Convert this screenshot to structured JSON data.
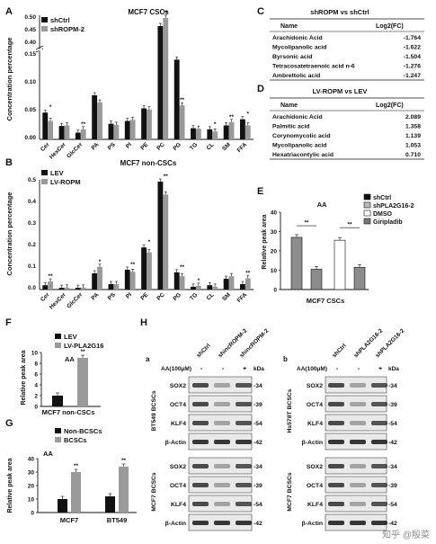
{
  "panel_letters": [
    "A",
    "B",
    "C",
    "D",
    "E",
    "F",
    "G",
    "H"
  ],
  "tick_labels_A": [
    "0.50",
    "0.45",
    "0.40",
    "0.15",
    "0.10",
    "0.05",
    "0.00"
  ],
  "tick_labels_B": [
    "0.5",
    "0.4",
    "0.3",
    "0.2",
    "0.1",
    "0.0"
  ],
  "ylabel_AB": "Concentration percentage",
  "categories_AB": [
    "Cer",
    "HexCer",
    "GlcCer",
    "PA",
    "PS",
    "PI",
    "PE",
    "PC",
    "PG",
    "TG",
    "CL",
    "SM",
    "FFA"
  ],
  "table_C": {
    "title": "shROPM vs shCtrl",
    "headers": [
      "Name",
      "Log2(FC)"
    ],
    "rows": [
      [
        "Arachidonic Acid",
        "-1.764"
      ],
      [
        "Mycolipanolic acid",
        "-1.622"
      ],
      [
        "Byrsonic acid",
        "-1.504"
      ],
      [
        "Tetracosatetraenoic acid n-6",
        "-1.276"
      ],
      [
        "Ambrettolic acid",
        "-1.247"
      ]
    ]
  },
  "table_D": {
    "title": "LV-ROPM vs LEV",
    "headers": [
      "Name",
      "Log2(FC)"
    ],
    "rows": [
      [
        "Arachidonic Acid",
        "2.089"
      ],
      [
        "Palmitic acid",
        "1.358"
      ],
      [
        "Corynomycolic acid",
        "1.139"
      ],
      [
        "Mycolipanolic acid",
        "1.053"
      ],
      [
        "Hexatriacontylic acid",
        "0.710"
      ]
    ]
  },
  "chart_data": [
    {
      "panel": "A",
      "type": "bar",
      "title": "MCF7 CSCs",
      "ylabel": "Concentration percentage",
      "ylim": [
        0,
        0.5
      ],
      "axis_break": [
        0.15,
        0.4
      ],
      "categories": [
        "Cer",
        "HexCer",
        "GlcCer",
        "PA",
        "PS",
        "PI",
        "PE",
        "PC",
        "PG",
        "TG",
        "CL",
        "SM",
        "FFA"
      ],
      "series": [
        {
          "name": "shCtrl",
          "color": "#111111",
          "values": [
            0.048,
            0.024,
            0.012,
            0.079,
            0.028,
            0.033,
            0.155,
            0.46,
            0.143,
            0.02,
            0.018,
            0.025,
            0.036
          ]
        },
        {
          "name": "shROPM-2",
          "color": "#9a9a9a",
          "values": [
            0.033,
            0.025,
            0.018,
            0.066,
            0.026,
            0.035,
            0.151,
            0.49,
            0.166,
            0.019,
            0.014,
            0.031,
            0.025
          ]
        }
      ],
      "annotations": [
        {
          "category": "Cer",
          "text": "*"
        },
        {
          "category": "GlcCer",
          "text": "**"
        },
        {
          "category": "PC",
          "text": "**"
        },
        {
          "category": "PG",
          "text": "**"
        },
        {
          "category": "CL",
          "text": "*"
        },
        {
          "category": "SM",
          "text": "**"
        },
        {
          "category": "FFA",
          "text": "*"
        }
      ]
    },
    {
      "panel": "B",
      "type": "bar",
      "title": "MCF7 non-CSCs",
      "ylabel": "Concentration percentage",
      "ylim": [
        0,
        0.5
      ],
      "categories": [
        "Cer",
        "HexCer",
        "GlcCer",
        "PA",
        "PS",
        "PI",
        "PE",
        "PC",
        "PG",
        "TG",
        "CL",
        "SM",
        "FFA"
      ],
      "series": [
        {
          "name": "LEV",
          "color": "#111111",
          "values": [
            0.02,
            0.008,
            0.008,
            0.075,
            0.025,
            0.092,
            0.195,
            0.5,
            0.08,
            0.013,
            0.02,
            0.05,
            0.025
          ]
        },
        {
          "name": "LV-ROPM",
          "color": "#9a9a9a",
          "values": [
            0.037,
            0.009,
            0.009,
            0.105,
            0.025,
            0.082,
            0.172,
            0.44,
            0.062,
            0.017,
            0.013,
            0.062,
            0.052
          ]
        }
      ],
      "annotations": [
        {
          "category": "Cer",
          "text": "**"
        },
        {
          "category": "PA",
          "text": "*"
        },
        {
          "category": "PI",
          "text": "**"
        },
        {
          "category": "PE",
          "text": "*"
        },
        {
          "category": "PC",
          "text": "**"
        },
        {
          "category": "PG",
          "text": "**"
        },
        {
          "category": "TG",
          "text": "*"
        },
        {
          "category": "FFA",
          "text": "**"
        }
      ]
    },
    {
      "panel": "E",
      "type": "bar",
      "title": "AA",
      "xlabel": "MCF7 CSCs",
      "ylabel": "Relative peak area",
      "ylim": [
        0,
        40
      ],
      "yticks": [
        0,
        10,
        20,
        30,
        40
      ],
      "categories": [
        "shCtrl",
        "shPLA2G16-2",
        "DMSO",
        "Giripladib"
      ],
      "colors": [
        "#8c8c8c",
        "#8c8c8c",
        "#ffffff",
        "#8c8c8c"
      ],
      "legend": [
        {
          "name": "shCtrl",
          "color": "#111111"
        },
        {
          "name": "shPLA2G16-2",
          "color": "#bbbbbb"
        },
        {
          "name": "DMSO",
          "color": "#ffffff"
        },
        {
          "name": "Giripladib",
          "color": "#777777"
        }
      ],
      "values": [
        27,
        10.5,
        25.5,
        11.5
      ],
      "annotations": [
        {
          "text": "**",
          "between": [
            0,
            1
          ]
        },
        {
          "text": "**",
          "between": [
            2,
            3
          ]
        }
      ]
    },
    {
      "panel": "F",
      "type": "bar",
      "title": "AA",
      "xlabel": "MCF7 non-CSCs",
      "ylabel": "Relative peak area",
      "ylim": [
        0,
        10
      ],
      "yticks": [
        0,
        2,
        4,
        6,
        8,
        10
      ],
      "series": [
        {
          "name": "LEV",
          "color": "#111111",
          "values": [
            2.0
          ]
        },
        {
          "name": "LV-PLA2G16",
          "color": "#9a9a9a",
          "values": [
            9.0
          ]
        }
      ],
      "annotations": [
        {
          "text": "**"
        }
      ]
    },
    {
      "panel": "G",
      "type": "bar",
      "title": "AA",
      "ylabel": "Relative peak area",
      "ylim": [
        0,
        40
      ],
      "yticks": [
        0,
        10,
        20,
        30,
        40
      ],
      "categories": [
        "MCF7",
        "BT549"
      ],
      "series": [
        {
          "name": "Non-BCSCs",
          "color": "#111111",
          "values": [
            10,
            12
          ]
        },
        {
          "name": "BCSCs",
          "color": "#9a9a9a",
          "values": [
            30,
            34
          ]
        }
      ],
      "annotations": [
        {
          "text": "**"
        },
        {
          "text": "**"
        }
      ]
    }
  ],
  "blot_H": {
    "sub_a": {
      "label": "a",
      "lanes": [
        "shCtrl",
        "shincROPM-2",
        "shincROPM-2"
      ],
      "aa_label": "AA(100μM)",
      "aa_values": [
        "-",
        "-",
        "+"
      ],
      "kda": "kDa",
      "groups": [
        "BT549 BCSCs",
        "MCF7 BCSCs"
      ],
      "proteins": [
        "SOX2",
        "OCT4",
        "KLF4",
        "β-Actin"
      ],
      "sizes": [
        "-34",
        "-39",
        "-54",
        "-42"
      ]
    },
    "sub_b": {
      "label": "b",
      "lanes": [
        "shCtrl",
        "shPLA2G16-2",
        "shPLA2G16-2"
      ],
      "aa_label": "AA(100μM)",
      "aa_values": [
        "-",
        "-",
        "+"
      ],
      "kda": "kDa",
      "groups": [
        "Hs578T BCSCs",
        "MCF7 BCSCs"
      ],
      "proteins": [
        "SOX2",
        "OCT4",
        "KLF4",
        "β-Actin"
      ],
      "sizes": [
        "-34",
        "-39",
        "-54",
        "-42"
      ]
    }
  },
  "watermark": "知乎 @殷菜"
}
